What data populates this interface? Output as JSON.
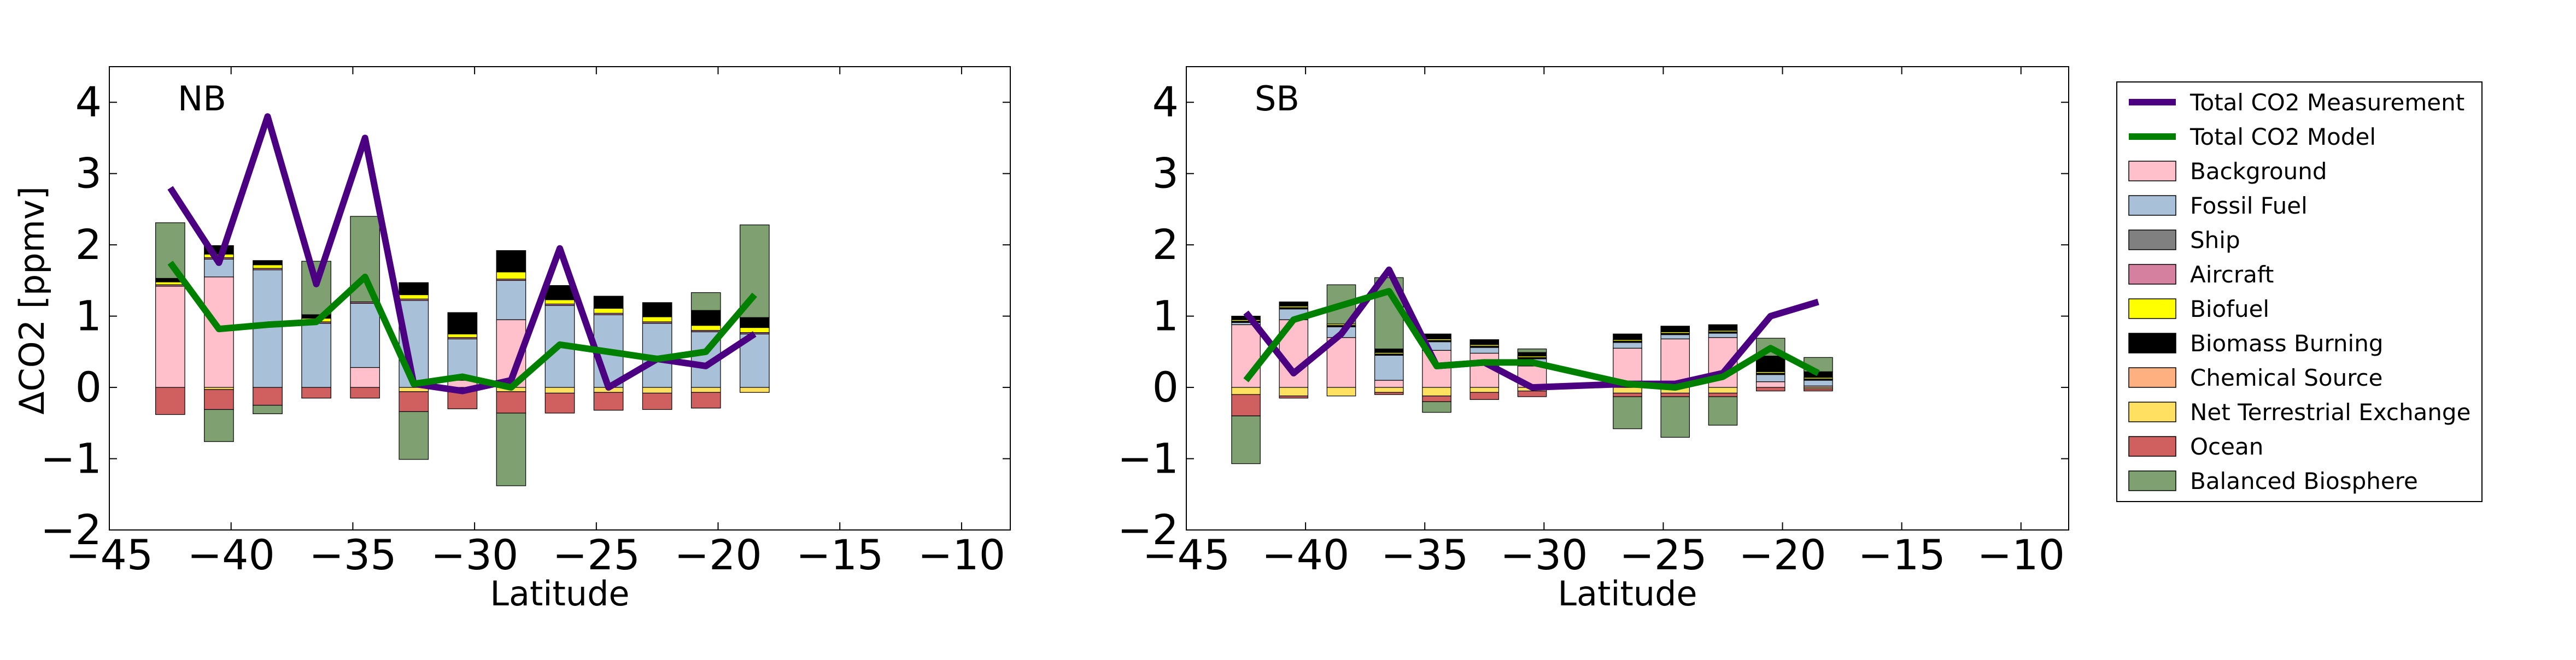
{
  "chart_data": {
    "type": "bar",
    "figure_panels": [
      "NB",
      "SB"
    ],
    "ylabel": "ΔCO2 [ppmv]",
    "xlabel": "Latitude",
    "xlim": [
      -45,
      -8
    ],
    "ylim": [
      -2,
      4.5
    ],
    "xticks": [
      -45,
      -40,
      -35,
      -30,
      -25,
      -20,
      -15,
      -10
    ],
    "xtick_labels": [
      "−45",
      "−40",
      "−35",
      "−30",
      "−25",
      "−20",
      "−15",
      "−10"
    ],
    "yticks": [
      -2,
      -1,
      0,
      1,
      2,
      3,
      4
    ],
    "ytick_labels": [
      "−2",
      "−1",
      "0",
      "1",
      "2",
      "3",
      "4"
    ],
    "bar_width_deg": 1.2,
    "grid": false,
    "legend": {
      "placement": "right, outside plots",
      "entries": [
        {
          "key": "measurement",
          "label": "Total CO2 Measurement",
          "kind": "line",
          "color": "#4B0082"
        },
        {
          "key": "model",
          "label": "Total CO2 Model",
          "kind": "line",
          "color": "#008000"
        },
        {
          "key": "background",
          "label": "Background",
          "kind": "patch",
          "color": "#FFC0CB"
        },
        {
          "key": "fossil",
          "label": "Fossil Fuel",
          "kind": "patch",
          "color": "#A8C0D8"
        },
        {
          "key": "ship",
          "label": "Ship",
          "kind": "patch",
          "color": "#808080"
        },
        {
          "key": "aircraft",
          "label": "Aircraft",
          "kind": "patch",
          "color": "#D4809E"
        },
        {
          "key": "biofuel",
          "label": "Biofuel",
          "kind": "patch",
          "color": "#FFFF00"
        },
        {
          "key": "biomass",
          "label": "Biomass Burning",
          "kind": "patch",
          "color": "#000000"
        },
        {
          "key": "chemical",
          "label": "Chemical Source",
          "kind": "patch",
          "color": "#FFB080"
        },
        {
          "key": "nte",
          "label": "Net Terrestrial Exchange",
          "kind": "patch",
          "color": "#FFE060"
        },
        {
          "key": "ocean",
          "label": "Ocean",
          "kind": "patch",
          "color": "#D06060"
        },
        {
          "key": "balanced",
          "label": "Balanced Biosphere",
          "kind": "patch",
          "color": "#7FA070"
        }
      ]
    },
    "panels": [
      {
        "label": "NB",
        "x": [
          -42.5,
          -40.5,
          -38.5,
          -36.5,
          -34.5,
          -32.5,
          -30.5,
          -28.5,
          -26.5,
          -24.5,
          -22.5,
          -20.5,
          -18.5
        ],
        "positive_stack": [
          {
            "component": "background",
            "values": [
              1.42,
              1.55,
              0.0,
              0.0,
              0.28,
              0.0,
              0.1,
              0.95,
              0.0,
              0.0,
              0.0,
              0.0,
              0.0
            ]
          },
          {
            "component": "fossil",
            "values": [
              0.0,
              0.25,
              1.65,
              0.9,
              0.9,
              1.22,
              0.58,
              0.55,
              1.15,
              1.02,
              0.9,
              0.78,
              0.75
            ]
          },
          {
            "component": "aircraft",
            "values": [
              0.02,
              0.02,
              0.02,
              0.02,
              0.02,
              0.02,
              0.02,
              0.02,
              0.02,
              0.02,
              0.02,
              0.02,
              0.02
            ]
          },
          {
            "component": "biofuel",
            "values": [
              0.04,
              0.05,
              0.05,
              0.05,
              0.0,
              0.06,
              0.05,
              0.1,
              0.06,
              0.07,
              0.07,
              0.07,
              0.07
            ]
          },
          {
            "component": "biomass",
            "values": [
              0.05,
              0.12,
              0.06,
              0.05,
              0.0,
              0.17,
              0.3,
              0.3,
              0.2,
              0.17,
              0.2,
              0.21,
              0.14
            ]
          },
          {
            "component": "balanced",
            "values": [
              0.78,
              0.0,
              0.0,
              0.75,
              1.2,
              0.0,
              0.0,
              0.0,
              0.0,
              0.0,
              0.0,
              0.25,
              1.3
            ]
          }
        ],
        "negative_stack": [
          {
            "component": "nte",
            "values": [
              0.0,
              -0.03,
              0.0,
              0.0,
              0.0,
              -0.06,
              -0.05,
              -0.06,
              -0.08,
              -0.07,
              -0.08,
              -0.07,
              -0.07
            ]
          },
          {
            "component": "ocean",
            "values": [
              -0.38,
              -0.28,
              -0.25,
              -0.15,
              -0.15,
              -0.28,
              -0.25,
              -0.3,
              -0.28,
              -0.25,
              -0.23,
              -0.22,
              0.0
            ]
          },
          {
            "component": "balanced",
            "values": [
              0.0,
              -0.45,
              -0.12,
              0.0,
              0.0,
              -0.67,
              0.0,
              -1.02,
              0.0,
              0.0,
              0.0,
              0.0,
              0.0
            ]
          }
        ],
        "series": [
          {
            "component": "measurement",
            "x": [
              -42.5,
              -40.5,
              -38.5,
              -36.5,
              -34.5,
              -32.5,
              -30.5,
              -28.5,
              -26.5,
              -24.5,
              -22.5,
              -20.5,
              -18.5
            ],
            "values": [
              2.8,
              1.75,
              3.8,
              1.45,
              3.5,
              0.05,
              -0.05,
              0.1,
              1.95,
              0.0,
              0.4,
              0.3,
              0.75
            ]
          },
          {
            "component": "model",
            "x": [
              -42.5,
              -40.5,
              -38.5,
              -36.5,
              -34.5,
              -32.5,
              -30.5,
              -28.5,
              -26.5,
              -24.5,
              -22.5,
              -20.5,
              -18.5
            ],
            "values": [
              1.75,
              0.82,
              0.88,
              0.92,
              1.55,
              0.05,
              0.15,
              0.0,
              0.6,
              0.5,
              0.4,
              0.5,
              1.3
            ]
          }
        ]
      },
      {
        "label": "SB",
        "x": [
          -42.5,
          -40.5,
          -38.5,
          -36.5,
          -34.5,
          -32.5,
          -30.5,
          -26.5,
          -24.5,
          -22.5,
          -20.5,
          -18.5
        ],
        "positive_stack": [
          {
            "component": "background",
            "values": [
              0.88,
              0.95,
              0.7,
              0.1,
              0.52,
              0.48,
              0.3,
              0.55,
              0.68,
              0.7,
              0.08,
              0.02
            ]
          },
          {
            "component": "fossil",
            "values": [
              0.03,
              0.15,
              0.15,
              0.35,
              0.12,
              0.08,
              0.1,
              0.08,
              0.06,
              0.06,
              0.1,
              0.08
            ]
          },
          {
            "component": "ship",
            "values": [
              0.01,
              0.01,
              0.01,
              0.01,
              0.01,
              0.01,
              0.01,
              0.01,
              0.01,
              0.01,
              0.01,
              0.01
            ]
          },
          {
            "component": "aircraft",
            "values": [
              0.01,
              0.01,
              0.01,
              0.01,
              0.01,
              0.01,
              0.01,
              0.01,
              0.01,
              0.01,
              0.01,
              0.01
            ]
          },
          {
            "component": "biofuel",
            "values": [
              0.02,
              0.02,
              0.02,
              0.02,
              0.02,
              0.02,
              0.02,
              0.02,
              0.02,
              0.02,
              0.02,
              0.02
            ]
          },
          {
            "component": "biomass",
            "values": [
              0.05,
              0.06,
              0.0,
              0.05,
              0.07,
              0.07,
              0.05,
              0.08,
              0.08,
              0.08,
              0.22,
              0.08
            ]
          },
          {
            "component": "balanced",
            "values": [
              0.0,
              0.0,
              0.55,
              1.0,
              0.0,
              0.0,
              0.05,
              0.0,
              0.0,
              0.0,
              0.25,
              0.2
            ]
          }
        ],
        "negative_stack": [
          {
            "component": "nte",
            "values": [
              -0.1,
              -0.12,
              -0.12,
              -0.07,
              -0.12,
              -0.07,
              -0.05,
              -0.08,
              -0.08,
              -0.08,
              0.0,
              -0.02
            ]
          },
          {
            "component": "ocean",
            "values": [
              -0.3,
              -0.03,
              0.0,
              -0.03,
              -0.08,
              -0.1,
              -0.08,
              -0.05,
              -0.05,
              -0.05,
              -0.05,
              -0.03
            ]
          },
          {
            "component": "balanced",
            "values": [
              -0.67,
              0.0,
              0.0,
              0.0,
              -0.15,
              0.0,
              0.0,
              -0.45,
              -0.57,
              -0.4,
              0.0,
              0.0
            ]
          }
        ],
        "series": [
          {
            "component": "measurement",
            "x": [
              -42.5,
              -40.5,
              -38.5,
              -36.5,
              -34.5,
              -32.5,
              -30.5,
              -26.5,
              -24.5,
              -22.5,
              -20.5,
              -18.5
            ],
            "values": [
              1.05,
              0.2,
              0.75,
              1.65,
              0.3,
              0.35,
              0.0,
              0.05,
              0.05,
              0.2,
              1.0,
              1.2
            ]
          },
          {
            "component": "model",
            "x": [
              -42.5,
              -40.5,
              -38.5,
              -36.5,
              -34.5,
              -32.5,
              -30.5,
              -26.5,
              -24.5,
              -22.5,
              -20.5,
              -18.5
            ],
            "values": [
              0.1,
              0.95,
              1.15,
              1.35,
              0.3,
              0.35,
              0.35,
              0.05,
              0.0,
              0.15,
              0.55,
              0.2
            ]
          }
        ]
      }
    ]
  }
}
